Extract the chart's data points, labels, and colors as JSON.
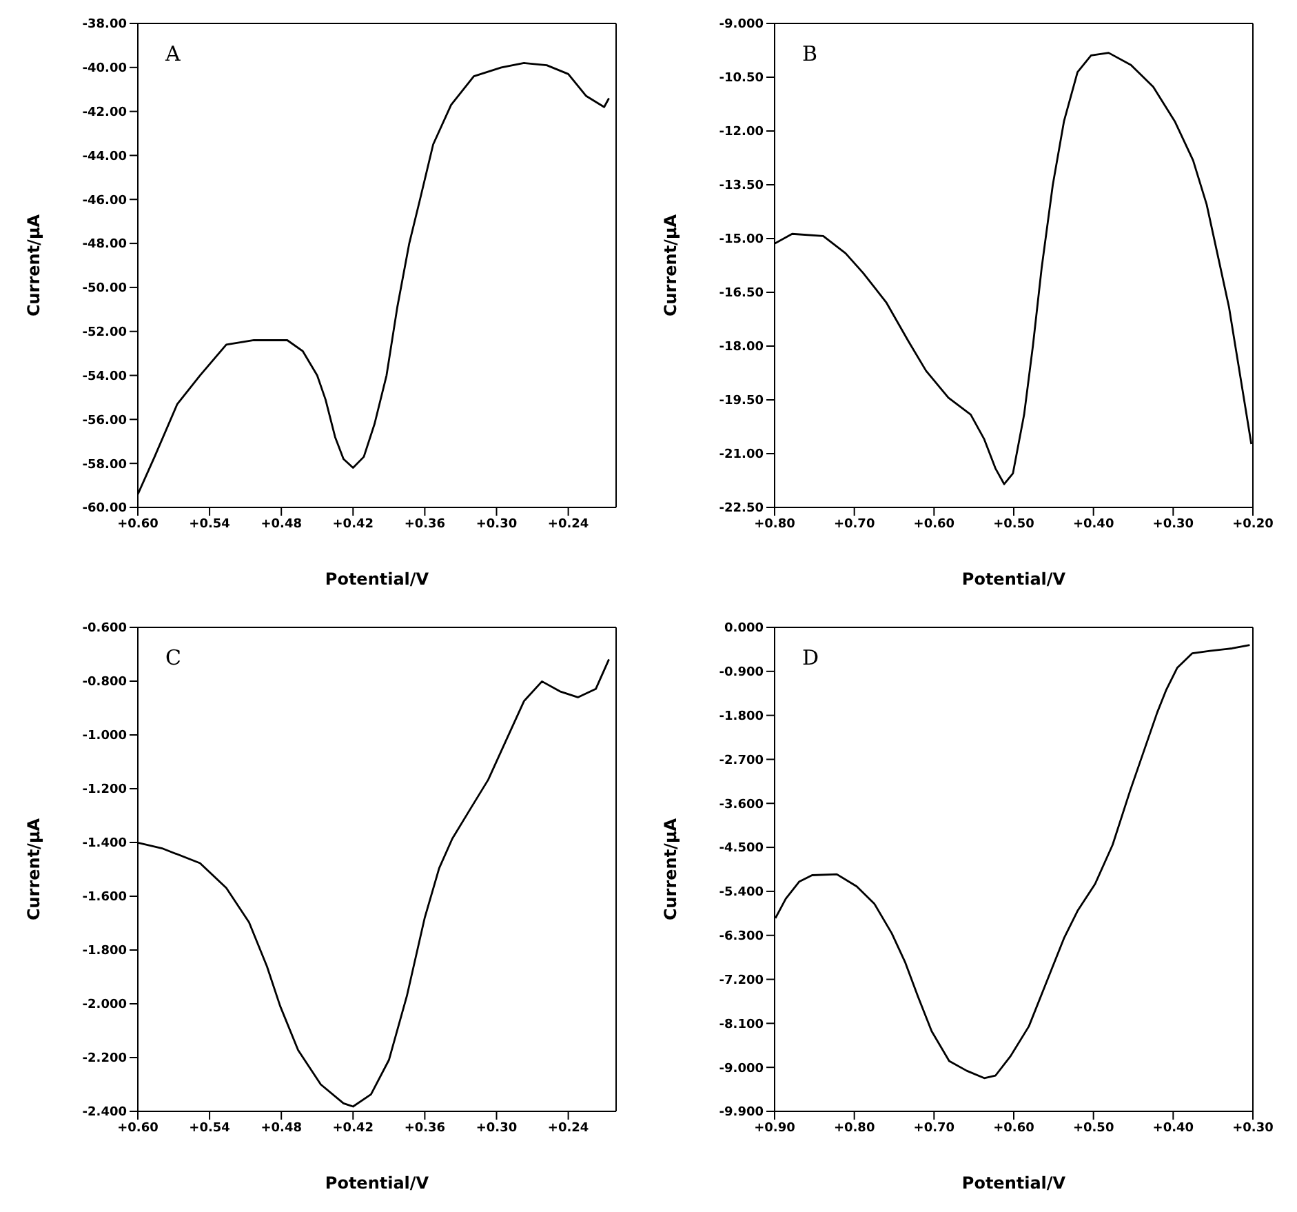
{
  "chart_data": [
    {
      "type": "line",
      "title": "A",
      "xlabel": "Potential/V",
      "ylabel": "Current/µA",
      "xlim": [
        0.6,
        0.2
      ],
      "ylim": [
        -60,
        -38
      ],
      "xticks": [
        {
          "value": 0.6,
          "label": "+0.60"
        },
        {
          "value": 0.54,
          "label": "+0.54"
        },
        {
          "value": 0.48,
          "label": "+0.48"
        },
        {
          "value": 0.42,
          "label": "+0.42"
        },
        {
          "value": 0.36,
          "label": "+0.36"
        },
        {
          "value": 0.3,
          "label": "+0.30"
        },
        {
          "value": 0.24,
          "label": "+0.24"
        }
      ],
      "yticks": [
        {
          "value": -38,
          "label": "-38.00"
        },
        {
          "value": -40,
          "label": "-40.00"
        },
        {
          "value": -42,
          "label": "-42.00"
        },
        {
          "value": -44,
          "label": "-44.00"
        },
        {
          "value": -46,
          "label": "-46.00"
        },
        {
          "value": -48,
          "label": "-48.00"
        },
        {
          "value": -50,
          "label": "-50.00"
        },
        {
          "value": -52,
          "label": "-52.00"
        },
        {
          "value": -54,
          "label": "-54.00"
        },
        {
          "value": -56,
          "label": "-56.00"
        },
        {
          "value": -58,
          "label": "-58.00"
        },
        {
          "value": -60,
          "label": "-60.00"
        }
      ],
      "series": [
        {
          "color": "#000000",
          "x": [
            0.6,
            0.586,
            0.567,
            0.548,
            0.526,
            0.503,
            0.475,
            0.462,
            0.45,
            0.443,
            0.435,
            0.428,
            0.42,
            0.411,
            0.402,
            0.392,
            0.383,
            0.373,
            0.364,
            0.353,
            0.338,
            0.319,
            0.296,
            0.277,
            0.258,
            0.24,
            0.225,
            0.21,
            0.206
          ],
          "values": [
            -59.4,
            -57.7,
            -55.3,
            -54.0,
            -52.6,
            -52.4,
            -52.4,
            -52.9,
            -54.0,
            -55.1,
            -56.8,
            -57.8,
            -58.2,
            -57.7,
            -56.2,
            -54.0,
            -50.9,
            -48.0,
            -46.0,
            -43.5,
            -41.7,
            -40.4,
            -40.0,
            -39.8,
            -39.9,
            -40.3,
            -41.3,
            -41.8,
            -41.4
          ]
        }
      ]
    },
    {
      "type": "line",
      "title": "B",
      "xlabel": "Potential/V",
      "ylabel": "Current/µA",
      "xlim": [
        0.8,
        0.2
      ],
      "ylim": [
        -22.5,
        -9
      ],
      "xticks": [
        {
          "value": 0.8,
          "label": "+0.80"
        },
        {
          "value": 0.7,
          "label": "+0.70"
        },
        {
          "value": 0.6,
          "label": "+0.60"
        },
        {
          "value": 0.5,
          "label": "+0.50"
        },
        {
          "value": 0.4,
          "label": "+0.40"
        },
        {
          "value": 0.3,
          "label": "+0.30"
        },
        {
          "value": 0.2,
          "label": "+0.20"
        }
      ],
      "yticks": [
        {
          "value": -9,
          "label": "-9.000"
        },
        {
          "value": -10.5,
          "label": "-10.50"
        },
        {
          "value": -12,
          "label": "-12.00"
        },
        {
          "value": -13.5,
          "label": "-13.50"
        },
        {
          "value": -15,
          "label": "-15.00"
        },
        {
          "value": -16.5,
          "label": "-16.50"
        },
        {
          "value": -18,
          "label": "-18.00"
        },
        {
          "value": -19.5,
          "label": "-19.50"
        },
        {
          "value": -21,
          "label": "-21.00"
        },
        {
          "value": -22.5,
          "label": "-22.50"
        }
      ],
      "series": [
        {
          "color": "#000000",
          "x": [
            0.8,
            0.778,
            0.739,
            0.711,
            0.689,
            0.66,
            0.632,
            0.61,
            0.582,
            0.554,
            0.537,
            0.523,
            0.512,
            0.501,
            0.487,
            0.476,
            0.465,
            0.451,
            0.437,
            0.42,
            0.403,
            0.381,
            0.353,
            0.325,
            0.298,
            0.275,
            0.258,
            0.242,
            0.23,
            0.219,
            0.208,
            0.202
          ],
          "values": [
            -15.14,
            -14.87,
            -14.93,
            -15.41,
            -15.96,
            -16.78,
            -17.87,
            -18.69,
            -19.44,
            -19.91,
            -20.6,
            -21.41,
            -21.85,
            -21.55,
            -19.91,
            -18.0,
            -15.82,
            -13.5,
            -11.73,
            -10.36,
            -9.89,
            -9.82,
            -10.16,
            -10.77,
            -11.73,
            -12.82,
            -14.05,
            -15.68,
            -16.91,
            -18.41,
            -19.91,
            -20.73
          ]
        }
      ]
    },
    {
      "type": "line",
      "title": "C",
      "xlabel": "Potential/V",
      "ylabel": "Current/µA",
      "xlim": [
        0.6,
        0.2
      ],
      "ylim": [
        -2.4,
        -0.6
      ],
      "xticks": [
        {
          "value": 0.6,
          "label": "+0.60"
        },
        {
          "value": 0.54,
          "label": "+0.54"
        },
        {
          "value": 0.48,
          "label": "+0.48"
        },
        {
          "value": 0.42,
          "label": "+0.42"
        },
        {
          "value": 0.36,
          "label": "+0.36"
        },
        {
          "value": 0.3,
          "label": "+0.30"
        },
        {
          "value": 0.24,
          "label": "+0.24"
        }
      ],
      "yticks": [
        {
          "value": -0.6,
          "label": "-0.600"
        },
        {
          "value": -0.8,
          "label": "-0.800"
        },
        {
          "value": -1.0,
          "label": "-1.000"
        },
        {
          "value": -1.2,
          "label": "-1.200"
        },
        {
          "value": -1.4,
          "label": "-1.400"
        },
        {
          "value": -1.6,
          "label": "-1.600"
        },
        {
          "value": -1.8,
          "label": "-1.800"
        },
        {
          "value": -2.0,
          "label": "-2.000"
        },
        {
          "value": -2.2,
          "label": "-2.200"
        },
        {
          "value": -2.4,
          "label": "-2.400"
        }
      ],
      "series": [
        {
          "color": "#000000",
          "x": [
            0.6,
            0.579,
            0.548,
            0.526,
            0.507,
            0.492,
            0.481,
            0.466,
            0.447,
            0.428,
            0.42,
            0.405,
            0.39,
            0.375,
            0.36,
            0.348,
            0.337,
            0.322,
            0.307,
            0.292,
            0.277,
            0.262,
            0.247,
            0.232,
            0.217,
            0.206
          ],
          "values": [
            -1.401,
            -1.423,
            -1.477,
            -1.569,
            -1.697,
            -1.861,
            -2.008,
            -2.172,
            -2.3,
            -2.37,
            -2.382,
            -2.337,
            -2.209,
            -1.971,
            -1.679,
            -1.496,
            -1.386,
            -1.276,
            -1.167,
            -1.02,
            -0.874,
            -0.801,
            -0.838,
            -0.86,
            -0.829,
            -0.719
          ]
        }
      ]
    },
    {
      "type": "line",
      "title": "D",
      "xlabel": "Potential/V",
      "ylabel": "Current/µA",
      "xlim": [
        0.9,
        0.3
      ],
      "ylim": [
        -9.9,
        0
      ],
      "xticks": [
        {
          "value": 0.9,
          "label": "+0.90"
        },
        {
          "value": 0.8,
          "label": "+0.80"
        },
        {
          "value": 0.7,
          "label": "+0.70"
        },
        {
          "value": 0.6,
          "label": "+0.60"
        },
        {
          "value": 0.5,
          "label": "+0.50"
        },
        {
          "value": 0.4,
          "label": "+0.40"
        },
        {
          "value": 0.3,
          "label": "+0.30"
        }
      ],
      "yticks": [
        {
          "value": 0,
          "label": "0.000"
        },
        {
          "value": -0.9,
          "label": "-0.900"
        },
        {
          "value": -1.8,
          "label": "-1.800"
        },
        {
          "value": -2.7,
          "label": "-2.700"
        },
        {
          "value": -3.6,
          "label": "-3.600"
        },
        {
          "value": -4.5,
          "label": "-4.500"
        },
        {
          "value": -5.4,
          "label": "-5.400"
        },
        {
          "value": -6.3,
          "label": "-6.300"
        },
        {
          "value": -7.2,
          "label": "-7.200"
        },
        {
          "value": -8.1,
          "label": "-8.100"
        },
        {
          "value": -9.0,
          "label": "-9.000"
        },
        {
          "value": -9.9,
          "label": "-9.900"
        }
      ],
      "series": [
        {
          "color": "#000000",
          "x": [
            0.899,
            0.886,
            0.869,
            0.853,
            0.822,
            0.797,
            0.775,
            0.753,
            0.736,
            0.72,
            0.703,
            0.681,
            0.659,
            0.637,
            0.623,
            0.604,
            0.581,
            0.559,
            0.537,
            0.52,
            0.498,
            0.476,
            0.454,
            0.437,
            0.42,
            0.409,
            0.395,
            0.376,
            0.354,
            0.326,
            0.304
          ],
          "values": [
            -5.95,
            -5.55,
            -5.2,
            -5.07,
            -5.05,
            -5.3,
            -5.65,
            -6.26,
            -6.86,
            -7.56,
            -8.26,
            -8.87,
            -9.07,
            -9.22,
            -9.17,
            -8.77,
            -8.16,
            -7.26,
            -6.36,
            -5.8,
            -5.25,
            -4.45,
            -3.34,
            -2.54,
            -1.74,
            -1.29,
            -0.83,
            -0.53,
            -0.48,
            -0.43,
            -0.36
          ]
        }
      ]
    }
  ]
}
